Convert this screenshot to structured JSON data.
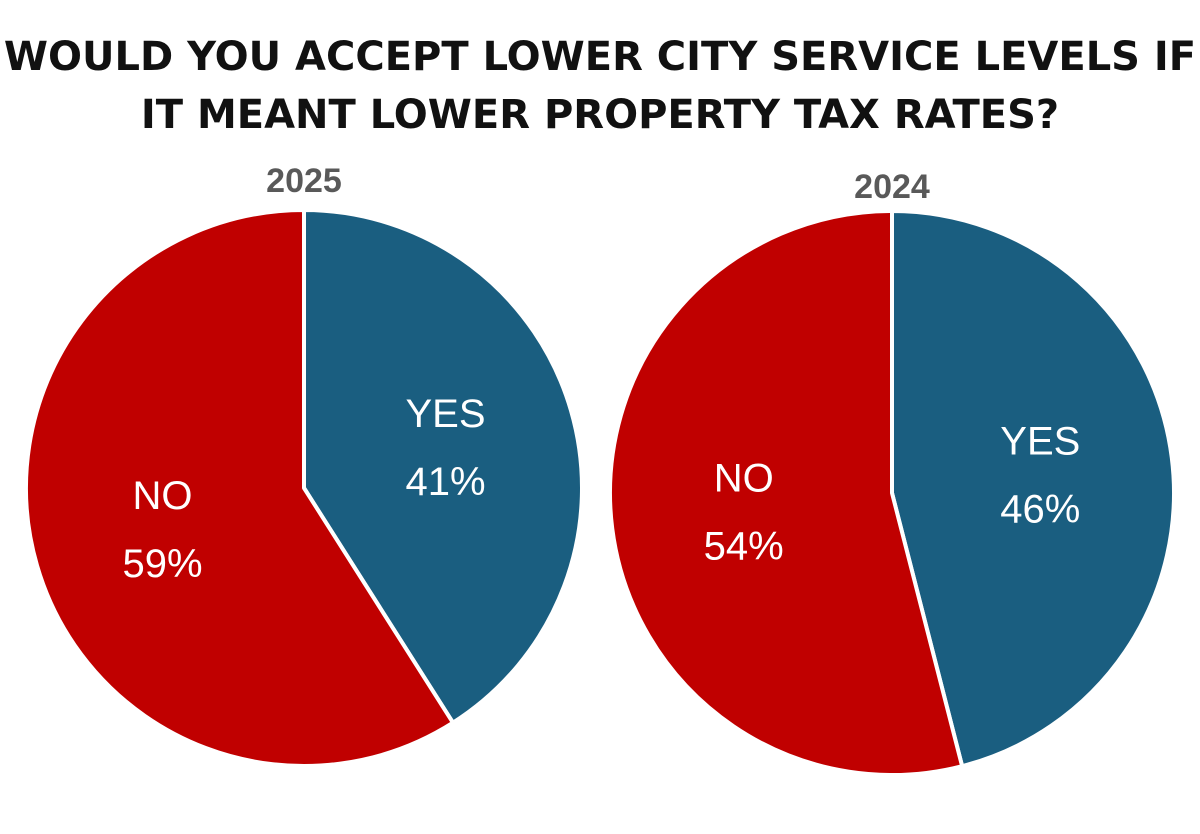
{
  "title": {
    "line1": "WOULD YOU ACCEPT LOWER CITY SERVICE LEVELS IF",
    "line2": "IT MEANT LOWER PROPERTY TAX RATES?"
  },
  "colors": {
    "yes": "#1a5e80",
    "no": "#c00000",
    "label_text": "#ffffff",
    "year_text": "#595959",
    "separator": "#ffffff"
  },
  "chart_data": [
    {
      "type": "pie",
      "title": "2025",
      "slices": [
        {
          "label": "YES",
          "value": 41,
          "display": "41%"
        },
        {
          "label": "NO",
          "value": 59,
          "display": "59%"
        }
      ]
    },
    {
      "type": "pie",
      "title": "2024",
      "slices": [
        {
          "label": "YES",
          "value": 46,
          "display": "46%"
        },
        {
          "label": "NO",
          "value": 54,
          "display": "54%"
        }
      ]
    }
  ]
}
